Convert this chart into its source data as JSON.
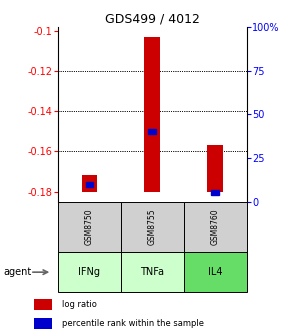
{
  "title": "GDS499 / 4012",
  "categories": [
    "IFNg",
    "TNFa",
    "IL4"
  ],
  "gsm_labels": [
    "GSM8750",
    "GSM8755",
    "GSM8760"
  ],
  "ylim_left": [
    -0.185,
    -0.098
  ],
  "ylim_right": [
    0,
    100
  ],
  "yticks_left": [
    -0.18,
    -0.16,
    -0.14,
    -0.12,
    -0.1
  ],
  "yticks_right": [
    0,
    25,
    50,
    75,
    100
  ],
  "ytick_labels_left": [
    "-0.18",
    "-0.16",
    "-0.14",
    "-0.12",
    "-0.1"
  ],
  "ytick_labels_right": [
    "0",
    "25",
    "50",
    "75",
    "100%"
  ],
  "log_ratio_base": -0.18,
  "log_ratio_values": [
    -0.172,
    -0.103,
    -0.157
  ],
  "percentile_values": [
    10,
    40,
    5
  ],
  "bar_color": "#cc0000",
  "percentile_color": "#0000cc",
  "gsm_bg": "#d0d0d0",
  "agent_bg_colors": [
    "#ccffcc",
    "#ccffcc",
    "#66dd66"
  ],
  "legend_red": "log ratio",
  "legend_blue": "percentile rank within the sample",
  "bar_width": 0.25,
  "x_positions": [
    0.5,
    1.5,
    2.5
  ]
}
